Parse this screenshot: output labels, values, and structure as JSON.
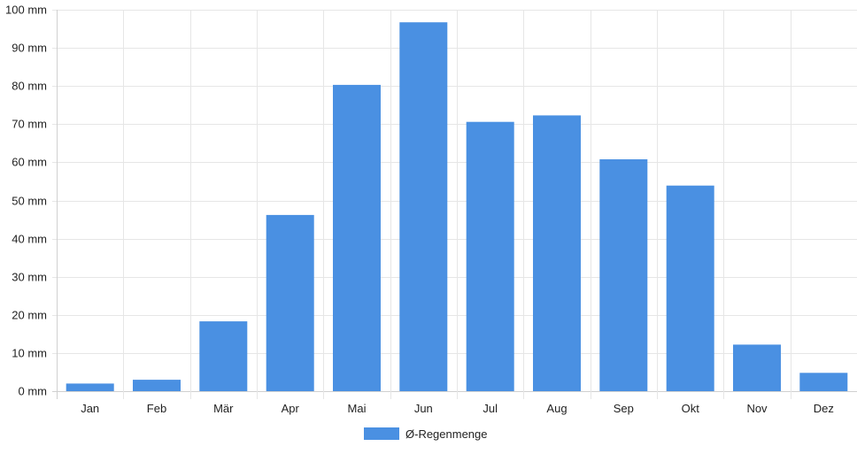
{
  "chart_data": {
    "type": "bar",
    "categories": [
      "Jan",
      "Feb",
      "Mär",
      "Apr",
      "Mai",
      "Jun",
      "Jul",
      "Aug",
      "Sep",
      "Okt",
      "Nov",
      "Dez"
    ],
    "series": [
      {
        "name": "Ø-Regenmenge",
        "values": [
          2,
          3,
          18.3,
          46.2,
          80.3,
          96.7,
          70.6,
          72.3,
          60.8,
          53.9,
          12.2,
          4.8
        ],
        "color": "#4a90e2"
      }
    ],
    "ylim": [
      0,
      100
    ],
    "yticks": [
      0,
      10,
      20,
      30,
      40,
      50,
      60,
      70,
      80,
      90,
      100
    ],
    "ytick_labels": [
      "0 mm",
      "10 mm",
      "20 mm",
      "30 mm",
      "40 mm",
      "50 mm",
      "60 mm",
      "70 mm",
      "80 mm",
      "90 mm",
      "100 mm"
    ],
    "grid": true,
    "legend_position": "bottom-center"
  }
}
